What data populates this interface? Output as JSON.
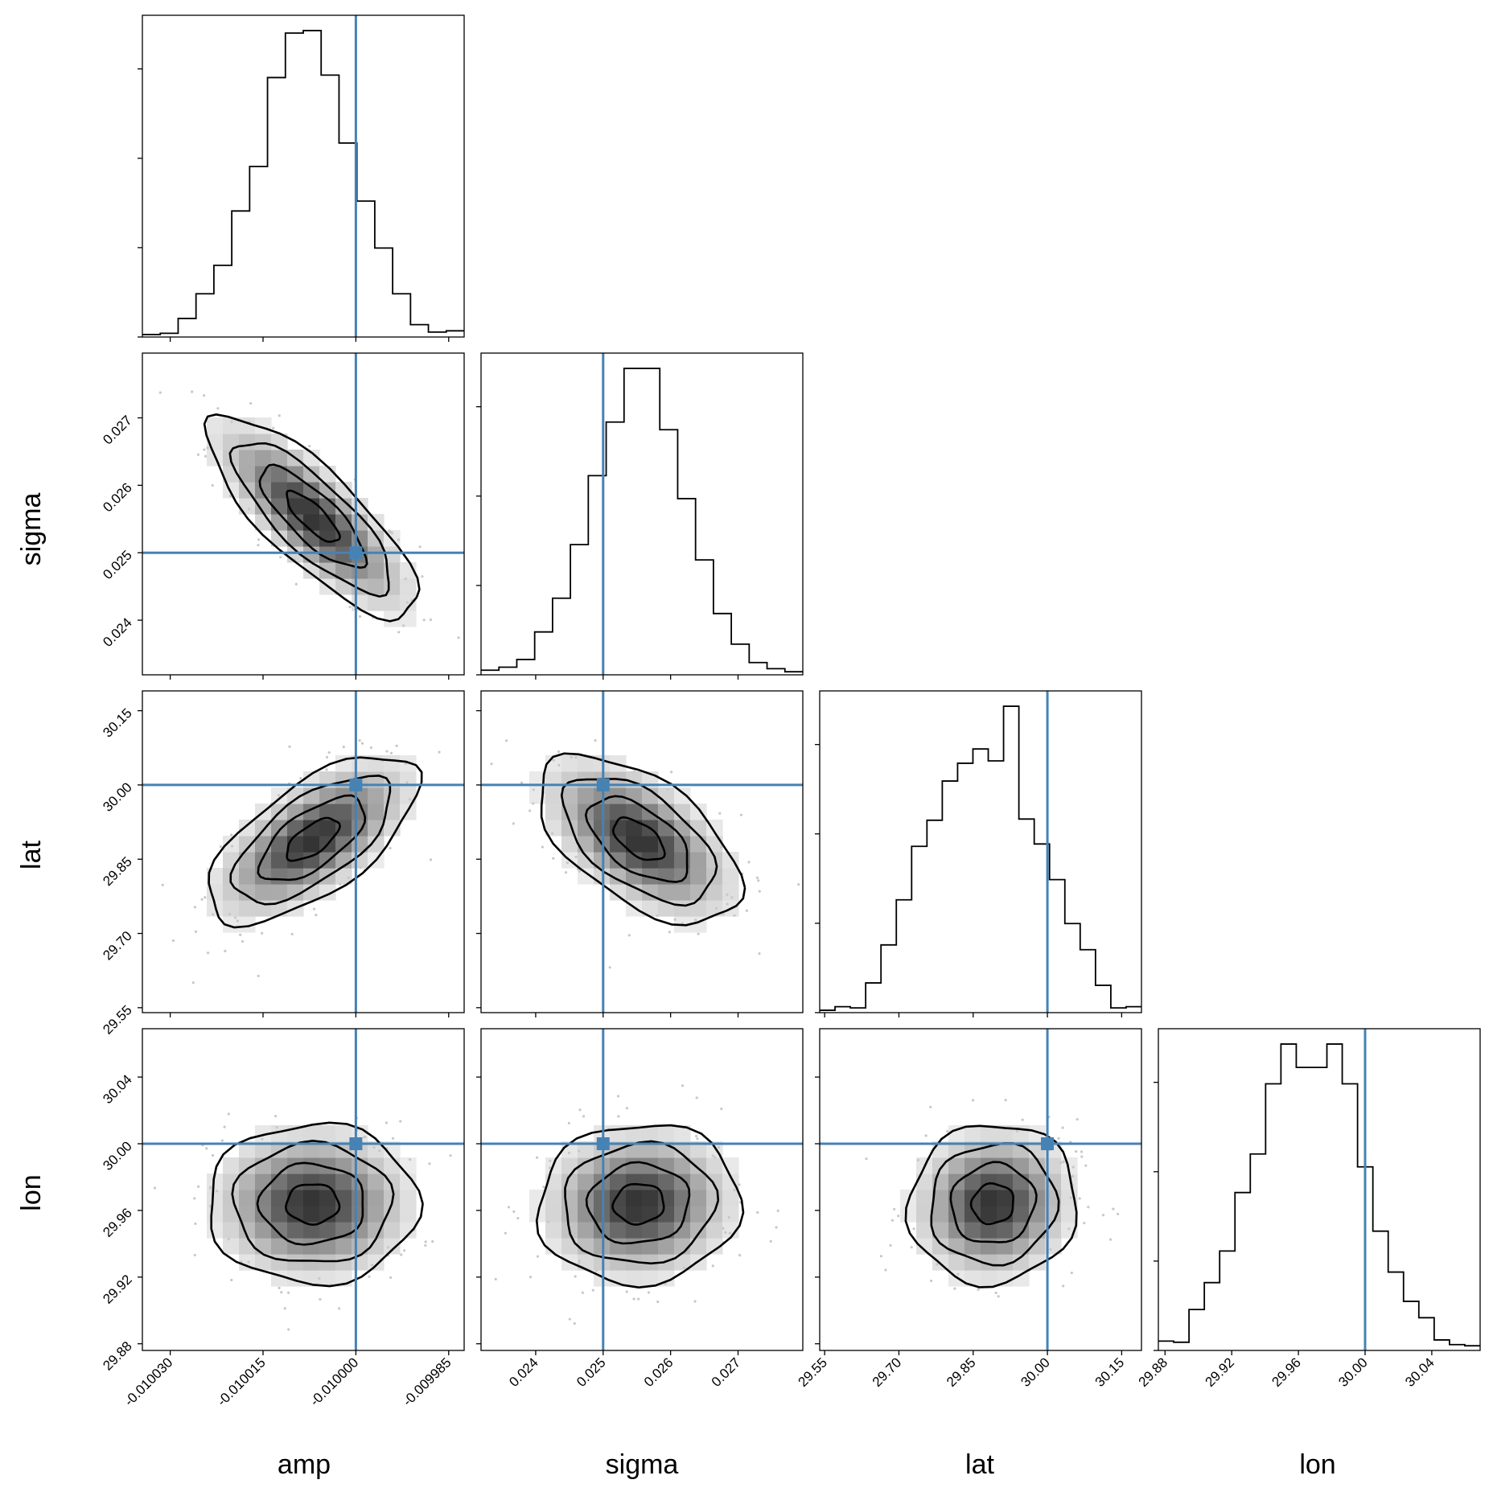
{
  "chart_data": {
    "type": "corner",
    "parameters": [
      "amp",
      "sigma",
      "lat",
      "lon"
    ],
    "truths": {
      "amp": -0.01,
      "sigma": 0.025,
      "lat": 30.0,
      "lon": 30.0
    },
    "truth_color": "#4682b4",
    "ranges": {
      "amp": [
        -0.0100345,
        -0.0099825
      ],
      "sigma": [
        0.02319,
        0.02796
      ],
      "lat": [
        29.54,
        30.19
      ],
      "lon": [
        29.876,
        30.069
      ]
    },
    "ticks": {
      "amp": [
        "-0.010030",
        "-0.010015",
        "-0.010000",
        "-0.009985"
      ],
      "sigma": [
        "0.024",
        "0.025",
        "0.026",
        "0.027"
      ],
      "lat": [
        "29.55",
        "29.70",
        "29.85",
        "30.00",
        "30.15"
      ],
      "lon": [
        "29.88",
        "29.92",
        "29.96",
        "30.00",
        "30.04"
      ]
    },
    "tick_values": {
      "amp": [
        -0.01003,
        -0.010015,
        -0.01,
        -0.009985
      ],
      "sigma": [
        0.024,
        0.025,
        0.026,
        0.027
      ],
      "lat": [
        29.55,
        29.7,
        29.85,
        30.0,
        30.15
      ],
      "lon": [
        29.88,
        29.92,
        29.96,
        30.0,
        30.04
      ]
    },
    "histograms": {
      "amp": [
        2,
        3,
        15,
        35,
        58,
        102,
        138,
        210,
        246,
        248,
        212,
        157,
        110,
        72,
        35,
        10,
        4,
        5
      ],
      "sigma": [
        3,
        5,
        10,
        28,
        50,
        85,
        130,
        165,
        200,
        200,
        160,
        115,
        75,
        40,
        20,
        8,
        4,
        2
      ],
      "lat": [
        2,
        5,
        4,
        25,
        57,
        95,
        140,
        162,
        195,
        210,
        222,
        212,
        258,
        163,
        142,
        112,
        75,
        53,
        23,
        4,
        5
      ],
      "lon": [
        8,
        7,
        35,
        58,
        85,
        135,
        168,
        228,
        262,
        242,
        242,
        262,
        228,
        157,
        102,
        67,
        42,
        28,
        9,
        5,
        4
      ]
    },
    "pair_stats": {
      "sigma|amp": {
        "mx": -0.010007,
        "sx": 8.5e-06,
        "my": 0.02553,
        "sy": 0.00075,
        "rho": -0.8
      },
      "lat|amp": {
        "mx": -0.010007,
        "sx": 8.5e-06,
        "my": 29.89,
        "sy": 0.085,
        "rho": 0.65
      },
      "lat|sigma": {
        "mx": 0.02553,
        "sx": 0.00075,
        "my": 29.89,
        "sy": 0.085,
        "rho": -0.55
      },
      "lon|amp": {
        "mx": -0.010007,
        "sx": 8.5e-06,
        "my": 29.964,
        "sy": 0.024,
        "rho": 0.0
      },
      "lon|sigma": {
        "mx": 0.02553,
        "sx": 0.00075,
        "my": 29.964,
        "sy": 0.024,
        "rho": 0.05
      },
      "lon|lat": {
        "mx": 29.89,
        "sx": 0.085,
        "my": 29.964,
        "sy": 0.024,
        "rho": 0.05
      }
    },
    "contour_levels_sigma": [
      0.5,
      1.0,
      1.5,
      2.0
    ],
    "grid": false
  }
}
